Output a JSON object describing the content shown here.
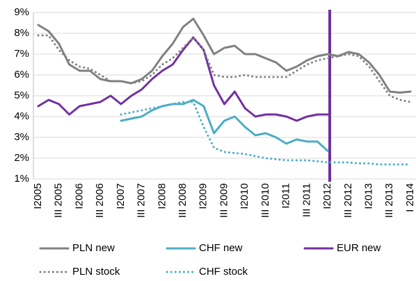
{
  "chart_data": {
    "type": "line",
    "categories": [
      "I2005",
      null,
      "III 2005",
      null,
      "I2006",
      null,
      "III 2006",
      null,
      "I2007",
      null,
      "III 2007",
      null,
      "I2008",
      null,
      "III 2008",
      null,
      "I2009",
      null,
      "III 2009",
      null,
      "I2010",
      null,
      "III 2010",
      null,
      "I2011",
      null,
      "III 2011",
      null,
      "I2012",
      null,
      "III 2012",
      null,
      "I2013",
      null,
      "III 2013",
      null,
      "I 2014"
    ],
    "series": [
      {
        "name": "PLN new",
        "color": "#808080",
        "style": "solid",
        "values": [
          8.4,
          8.1,
          7.5,
          6.5,
          6.2,
          6.2,
          5.8,
          5.7,
          5.7,
          5.6,
          5.8,
          6.2,
          6.9,
          7.5,
          8.3,
          8.7,
          7.9,
          7.0,
          7.3,
          7.4,
          7.0,
          7.0,
          6.8,
          6.6,
          6.2,
          6.4,
          6.7,
          6.9,
          7.0,
          6.9,
          7.1,
          7.0,
          6.6,
          6.0,
          5.2,
          5.15,
          5.2
        ]
      },
      {
        "name": "CHF new",
        "color": "#4bacc6",
        "style": "solid",
        "values": [
          null,
          null,
          null,
          null,
          null,
          null,
          null,
          null,
          3.8,
          3.9,
          4.0,
          4.3,
          4.5,
          4.6,
          4.6,
          4.8,
          4.5,
          3.2,
          3.8,
          4.0,
          3.5,
          3.1,
          3.2,
          3.0,
          2.7,
          2.9,
          2.8,
          2.8,
          2.35,
          null,
          null,
          null,
          null,
          null,
          null,
          null,
          null
        ]
      },
      {
        "name": "EUR new",
        "color": "#7030a0",
        "style": "solid",
        "values": [
          4.5,
          4.8,
          4.6,
          4.1,
          4.5,
          4.6,
          4.7,
          5.0,
          4.6,
          5.0,
          5.3,
          5.8,
          6.2,
          6.5,
          7.2,
          7.8,
          7.2,
          5.5,
          4.6,
          5.2,
          4.4,
          4.0,
          4.1,
          4.1,
          4.0,
          3.8,
          4.0,
          4.1,
          4.1,
          null,
          null,
          null,
          null,
          null,
          null,
          null,
          null
        ]
      },
      {
        "name": "PLN stock",
        "color": "#808080",
        "style": "dotted",
        "values": [
          7.9,
          7.9,
          7.2,
          6.7,
          6.4,
          6.3,
          6.0,
          5.7,
          5.7,
          5.6,
          5.7,
          6.0,
          6.5,
          6.8,
          7.3,
          7.8,
          7.2,
          6.0,
          5.9,
          5.9,
          6.0,
          5.9,
          5.9,
          5.9,
          5.9,
          6.2,
          6.5,
          6.7,
          6.8,
          6.9,
          7.0,
          6.9,
          6.4,
          5.7,
          5.0,
          4.8,
          4.7
        ]
      },
      {
        "name": "CHF stock",
        "color": "#4bacc6",
        "style": "dotted",
        "values": [
          null,
          null,
          null,
          null,
          null,
          null,
          null,
          null,
          4.1,
          4.2,
          4.3,
          4.4,
          4.5,
          4.6,
          4.7,
          4.7,
          3.5,
          2.5,
          2.3,
          2.25,
          2.2,
          2.1,
          2.0,
          1.95,
          1.9,
          1.9,
          1.9,
          1.85,
          1.8,
          1.8,
          1.8,
          1.75,
          1.75,
          1.7,
          1.7,
          1.7,
          1.7
        ]
      }
    ],
    "ylim": [
      1,
      9
    ],
    "yticks": [
      {
        "value": 1,
        "label": "1%"
      },
      {
        "value": 2,
        "label": "2%"
      },
      {
        "value": 3,
        "label": "3%"
      },
      {
        "value": 4,
        "label": "4%"
      },
      {
        "value": 5,
        "label": "5%"
      },
      {
        "value": 6,
        "label": "6%"
      },
      {
        "value": 7,
        "label": "7%"
      },
      {
        "value": 8,
        "label": "8%"
      },
      {
        "value": 9,
        "label": "9%"
      }
    ],
    "grid": true
  }
}
